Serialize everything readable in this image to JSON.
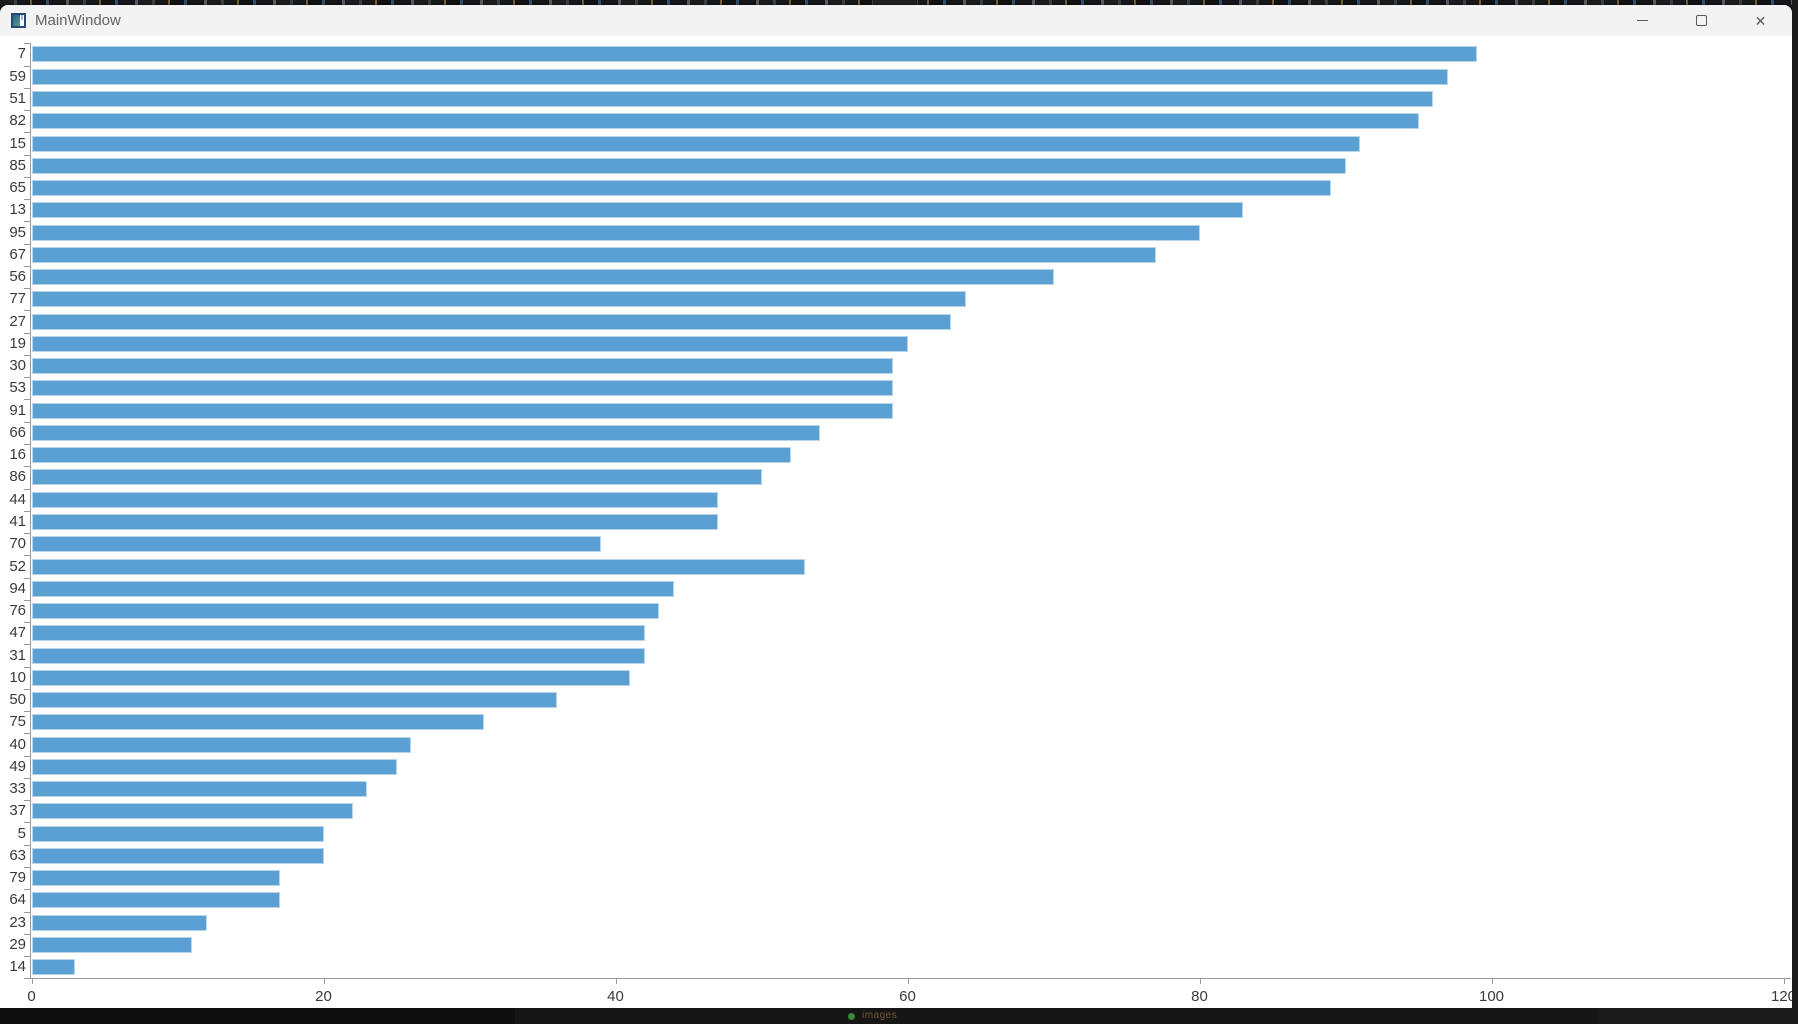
{
  "window": {
    "title": "MainWindow",
    "controls": {
      "minimize": "minimize",
      "maximize": "maximize",
      "close_glyph": "✕"
    }
  },
  "desktop": {
    "bottom_bar_text": "images"
  },
  "chart_data": {
    "type": "bar",
    "orientation": "horizontal",
    "title": "",
    "xlabel": "",
    "ylabel": "",
    "categories": [
      "7",
      "59",
      "51",
      "82",
      "15",
      "85",
      "65",
      "13",
      "95",
      "67",
      "56",
      "77",
      "27",
      "19",
      "30",
      "53",
      "91",
      "66",
      "16",
      "86",
      "44",
      "41",
      "70",
      "52",
      "94",
      "76",
      "47",
      "31",
      "10",
      "50",
      "75",
      "40",
      "49",
      "33",
      "37",
      "5",
      "63",
      "79",
      "64",
      "23",
      "29",
      "14"
    ],
    "values": [
      99,
      97,
      96,
      95,
      91,
      90,
      89,
      83,
      80,
      77,
      70,
      64,
      63,
      60,
      59,
      59,
      59,
      54,
      52,
      50,
      47,
      47,
      39,
      53,
      44,
      43,
      42,
      42,
      41,
      36,
      31,
      26,
      25,
      23,
      22,
      20,
      20,
      17,
      17,
      12,
      11,
      3
    ],
    "xlim": [
      0,
      120
    ],
    "xticks": [
      0,
      20,
      40,
      60,
      80,
      100,
      120
    ],
    "grid": false,
    "legend": "none",
    "bar_color": "#5BA0D2",
    "bar_border_color": "#B9D5EB",
    "axis_color": "#9A9A9A",
    "label_color": "#3A3A3A"
  }
}
